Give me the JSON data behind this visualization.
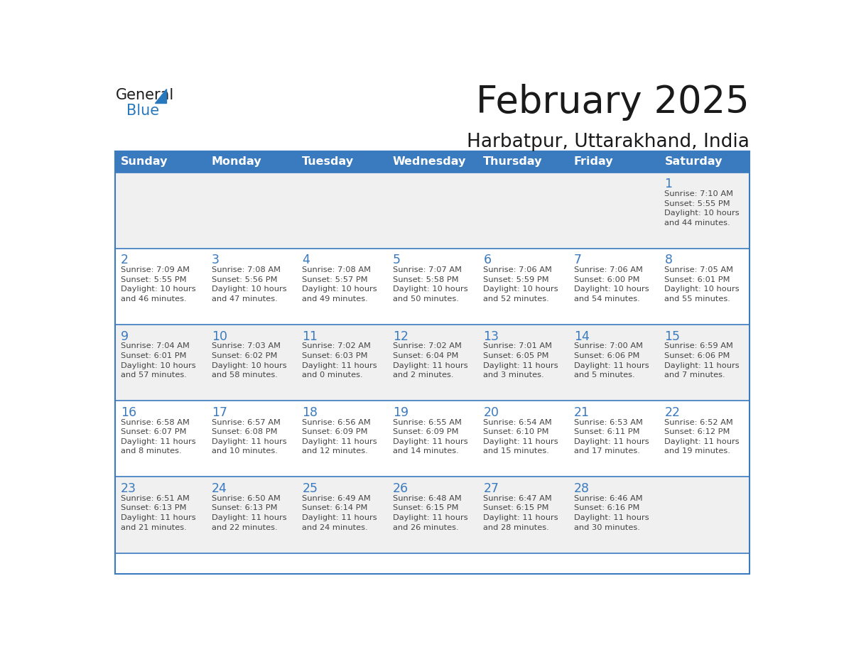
{
  "title": "February 2025",
  "subtitle": "Harbatpur, Uttarakhand, India",
  "header_bg": "#3a7abf",
  "header_text_color": "#ffffff",
  "cell_bg_odd": "#f0f0f0",
  "cell_bg_even": "#ffffff",
  "cell_border_top_color": "#3a7abf",
  "day_text_color": "#3a7abf",
  "info_text_color": "#444444",
  "title_color": "#1a1a1a",
  "days_of_week": [
    "Sunday",
    "Monday",
    "Tuesday",
    "Wednesday",
    "Thursday",
    "Friday",
    "Saturday"
  ],
  "weeks": [
    [
      {
        "day": "",
        "info": ""
      },
      {
        "day": "",
        "info": ""
      },
      {
        "day": "",
        "info": ""
      },
      {
        "day": "",
        "info": ""
      },
      {
        "day": "",
        "info": ""
      },
      {
        "day": "",
        "info": ""
      },
      {
        "day": "1",
        "info": "Sunrise: 7:10 AM\nSunset: 5:55 PM\nDaylight: 10 hours\nand 44 minutes."
      }
    ],
    [
      {
        "day": "2",
        "info": "Sunrise: 7:09 AM\nSunset: 5:55 PM\nDaylight: 10 hours\nand 46 minutes."
      },
      {
        "day": "3",
        "info": "Sunrise: 7:08 AM\nSunset: 5:56 PM\nDaylight: 10 hours\nand 47 minutes."
      },
      {
        "day": "4",
        "info": "Sunrise: 7:08 AM\nSunset: 5:57 PM\nDaylight: 10 hours\nand 49 minutes."
      },
      {
        "day": "5",
        "info": "Sunrise: 7:07 AM\nSunset: 5:58 PM\nDaylight: 10 hours\nand 50 minutes."
      },
      {
        "day": "6",
        "info": "Sunrise: 7:06 AM\nSunset: 5:59 PM\nDaylight: 10 hours\nand 52 minutes."
      },
      {
        "day": "7",
        "info": "Sunrise: 7:06 AM\nSunset: 6:00 PM\nDaylight: 10 hours\nand 54 minutes."
      },
      {
        "day": "8",
        "info": "Sunrise: 7:05 AM\nSunset: 6:01 PM\nDaylight: 10 hours\nand 55 minutes."
      }
    ],
    [
      {
        "day": "9",
        "info": "Sunrise: 7:04 AM\nSunset: 6:01 PM\nDaylight: 10 hours\nand 57 minutes."
      },
      {
        "day": "10",
        "info": "Sunrise: 7:03 AM\nSunset: 6:02 PM\nDaylight: 10 hours\nand 58 minutes."
      },
      {
        "day": "11",
        "info": "Sunrise: 7:02 AM\nSunset: 6:03 PM\nDaylight: 11 hours\nand 0 minutes."
      },
      {
        "day": "12",
        "info": "Sunrise: 7:02 AM\nSunset: 6:04 PM\nDaylight: 11 hours\nand 2 minutes."
      },
      {
        "day": "13",
        "info": "Sunrise: 7:01 AM\nSunset: 6:05 PM\nDaylight: 11 hours\nand 3 minutes."
      },
      {
        "day": "14",
        "info": "Sunrise: 7:00 AM\nSunset: 6:06 PM\nDaylight: 11 hours\nand 5 minutes."
      },
      {
        "day": "15",
        "info": "Sunrise: 6:59 AM\nSunset: 6:06 PM\nDaylight: 11 hours\nand 7 minutes."
      }
    ],
    [
      {
        "day": "16",
        "info": "Sunrise: 6:58 AM\nSunset: 6:07 PM\nDaylight: 11 hours\nand 8 minutes."
      },
      {
        "day": "17",
        "info": "Sunrise: 6:57 AM\nSunset: 6:08 PM\nDaylight: 11 hours\nand 10 minutes."
      },
      {
        "day": "18",
        "info": "Sunrise: 6:56 AM\nSunset: 6:09 PM\nDaylight: 11 hours\nand 12 minutes."
      },
      {
        "day": "19",
        "info": "Sunrise: 6:55 AM\nSunset: 6:09 PM\nDaylight: 11 hours\nand 14 minutes."
      },
      {
        "day": "20",
        "info": "Sunrise: 6:54 AM\nSunset: 6:10 PM\nDaylight: 11 hours\nand 15 minutes."
      },
      {
        "day": "21",
        "info": "Sunrise: 6:53 AM\nSunset: 6:11 PM\nDaylight: 11 hours\nand 17 minutes."
      },
      {
        "day": "22",
        "info": "Sunrise: 6:52 AM\nSunset: 6:12 PM\nDaylight: 11 hours\nand 19 minutes."
      }
    ],
    [
      {
        "day": "23",
        "info": "Sunrise: 6:51 AM\nSunset: 6:13 PM\nDaylight: 11 hours\nand 21 minutes."
      },
      {
        "day": "24",
        "info": "Sunrise: 6:50 AM\nSunset: 6:13 PM\nDaylight: 11 hours\nand 22 minutes."
      },
      {
        "day": "25",
        "info": "Sunrise: 6:49 AM\nSunset: 6:14 PM\nDaylight: 11 hours\nand 24 minutes."
      },
      {
        "day": "26",
        "info": "Sunrise: 6:48 AM\nSunset: 6:15 PM\nDaylight: 11 hours\nand 26 minutes."
      },
      {
        "day": "27",
        "info": "Sunrise: 6:47 AM\nSunset: 6:15 PM\nDaylight: 11 hours\nand 28 minutes."
      },
      {
        "day": "28",
        "info": "Sunrise: 6:46 AM\nSunset: 6:16 PM\nDaylight: 11 hours\nand 30 minutes."
      },
      {
        "day": "",
        "info": ""
      }
    ]
  ],
  "logo_general_color": "#1a1a1a",
  "logo_blue_color": "#2878be"
}
